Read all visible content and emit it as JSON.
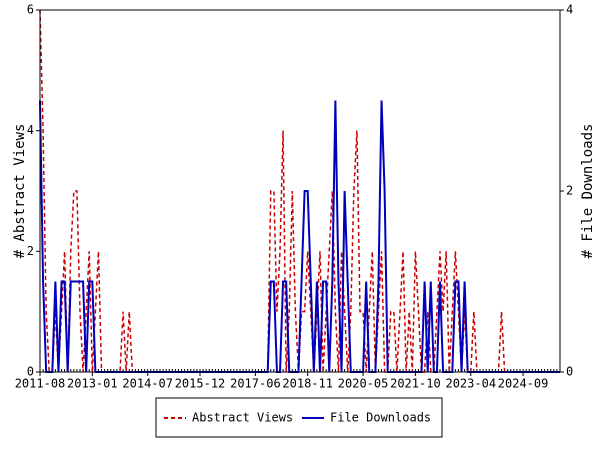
{
  "chart_data": {
    "type": "line",
    "x": [
      "2011-08",
      "2011-09",
      "2011-10",
      "2011-11",
      "2011-12",
      "2012-01",
      "2012-02",
      "2012-03",
      "2012-04",
      "2012-05",
      "2012-06",
      "2012-07",
      "2012-08",
      "2012-09",
      "2012-10",
      "2012-11",
      "2012-12",
      "2013-01",
      "2013-02",
      "2013-03",
      "2013-04",
      "2013-05",
      "2013-06",
      "2013-07",
      "2013-08",
      "2013-09",
      "2013-10",
      "2013-11",
      "2013-12",
      "2014-01",
      "2014-02",
      "2014-03",
      "2014-04",
      "2014-05",
      "2014-06",
      "2014-07",
      "2014-08",
      "2014-09",
      "2014-10",
      "2014-11",
      "2014-12",
      "2015-01",
      "2015-02",
      "2015-03",
      "2015-04",
      "2015-05",
      "2015-06",
      "2015-07",
      "2015-08",
      "2015-09",
      "2015-10",
      "2015-11",
      "2015-12",
      "2016-01",
      "2016-02",
      "2016-03",
      "2016-04",
      "2016-05",
      "2016-06",
      "2016-07",
      "2016-08",
      "2016-09",
      "2016-10",
      "2016-11",
      "2016-12",
      "2017-01",
      "2017-02",
      "2017-03",
      "2017-04",
      "2017-05",
      "2017-06",
      "2017-07",
      "2017-08",
      "2017-09",
      "2017-10",
      "2017-11",
      "2017-12",
      "2018-01",
      "2018-02",
      "2018-03",
      "2018-04",
      "2018-05",
      "2018-06",
      "2018-07",
      "2018-08",
      "2018-09",
      "2018-10",
      "2018-11",
      "2018-12",
      "2019-01",
      "2019-02",
      "2019-03",
      "2019-04",
      "2019-05",
      "2019-06",
      "2019-07",
      "2019-08",
      "2019-09",
      "2019-10",
      "2019-11",
      "2019-12",
      "2020-01",
      "2020-02",
      "2020-03",
      "2020-04",
      "2020-05",
      "2020-06",
      "2020-07",
      "2020-08",
      "2020-09",
      "2020-10",
      "2020-11",
      "2020-12",
      "2021-01",
      "2021-02",
      "2021-03",
      "2021-04",
      "2021-05",
      "2021-06",
      "2021-07",
      "2021-08",
      "2021-09",
      "2021-10",
      "2021-11",
      "2021-12",
      "2022-01",
      "2022-02",
      "2022-03",
      "2022-04",
      "2022-05",
      "2022-06",
      "2022-07",
      "2022-08",
      "2022-09",
      "2022-10",
      "2022-11",
      "2022-12",
      "2023-01",
      "2023-02",
      "2023-03",
      "2023-04",
      "2023-05",
      "2023-06",
      "2023-07",
      "2023-08",
      "2023-09",
      "2023-10",
      "2023-11",
      "2023-12",
      "2024-01",
      "2024-02",
      "2024-03",
      "2024-04",
      "2024-05",
      "2024-06",
      "2024-07",
      "2024-08",
      "2024-09",
      "2024-10",
      "2024-11",
      "2024-12",
      "2025-01",
      "2025-02",
      "2025-03",
      "2025-04",
      "2025-05",
      "2025-06",
      "2025-07",
      "2025-08",
      "2025-09"
    ],
    "series": [
      {
        "name": "Abstract Views",
        "color": "#cc0000",
        "dashed": true,
        "values": [
          6,
          4,
          1,
          0,
          0,
          1,
          0,
          1,
          2,
          0,
          2,
          3,
          3,
          1,
          0,
          1,
          2,
          0,
          1,
          2,
          0,
          0,
          0,
          0,
          0,
          0,
          0,
          1,
          0,
          1,
          0,
          0,
          0,
          0,
          0,
          0,
          0,
          0,
          0,
          0,
          0,
          0,
          0,
          0,
          0,
          0,
          0,
          0,
          0,
          0,
          0,
          0,
          0,
          0,
          0,
          0,
          0,
          0,
          0,
          0,
          0,
          0,
          0,
          0,
          0,
          0,
          0,
          0,
          0,
          0,
          0,
          0,
          0,
          0,
          0,
          3,
          3,
          1,
          2,
          4,
          0,
          1,
          3,
          1,
          0,
          1,
          1,
          2,
          1,
          0,
          1,
          2,
          0,
          1,
          2,
          3,
          1,
          0,
          2,
          1,
          0,
          1,
          3,
          4,
          1,
          1,
          0,
          1,
          2,
          0,
          1,
          2,
          0,
          0,
          1,
          1,
          0,
          1,
          2,
          0,
          1,
          0,
          2,
          1,
          0,
          0,
          1,
          0,
          0,
          1,
          2,
          1,
          2,
          0,
          1,
          2,
          1,
          0,
          1,
          0,
          0,
          1,
          0,
          0,
          0,
          0,
          0,
          0,
          0,
          0,
          1,
          0,
          0,
          0,
          0,
          0,
          0,
          0,
          0,
          0,
          0,
          0,
          0,
          0,
          0,
          0,
          0,
          0,
          0,
          0
        ]
      },
      {
        "name": "File Downloads",
        "color": "#0000bb",
        "axis": "y2",
        "values": [
          3,
          1,
          0,
          0,
          0,
          1,
          0,
          1,
          1,
          0,
          1,
          1,
          1,
          1,
          1,
          0,
          1,
          1,
          0,
          0,
          0,
          0,
          0,
          0,
          0,
          0,
          0,
          0,
          0,
          0,
          0,
          0,
          0,
          0,
          0,
          0,
          0,
          0,
          0,
          0,
          0,
          0,
          0,
          0,
          0,
          0,
          0,
          0,
          0,
          0,
          0,
          0,
          0,
          0,
          0,
          0,
          0,
          0,
          0,
          0,
          0,
          0,
          0,
          0,
          0,
          0,
          0,
          0,
          0,
          0,
          0,
          0,
          0,
          0,
          0,
          1,
          1,
          0,
          0,
          1,
          1,
          0,
          0,
          0,
          0,
          1,
          2,
          2,
          1,
          0,
          1,
          0,
          1,
          1,
          0,
          1,
          3,
          1,
          0,
          2,
          1,
          0,
          0,
          0,
          0,
          0,
          1,
          0,
          0,
          0,
          1,
          3,
          2,
          0,
          0,
          0,
          0,
          0,
          0,
          0,
          0,
          0,
          0,
          0,
          0,
          1,
          0,
          1,
          0,
          0,
          1,
          0,
          0,
          0,
          0,
          1,
          1,
          0,
          1,
          0,
          0,
          0,
          0,
          0,
          0,
          0,
          0,
          0,
          0,
          0,
          0,
          0,
          0,
          0,
          0,
          0,
          0,
          0,
          0,
          0,
          0,
          0,
          0,
          0,
          0,
          0,
          0,
          0,
          0,
          0
        ]
      }
    ],
    "xticks": [
      "2011-08",
      "2013-01",
      "2014-07",
      "2015-12",
      "2017-06",
      "2018-11",
      "2020-05",
      "2021-10",
      "2023-04",
      "2024-09"
    ],
    "ylabel": "# Abstract Views",
    "ylim": [
      0,
      6
    ],
    "yticks": [
      0,
      2,
      4,
      6
    ],
    "y2label": "# File Downloads",
    "y2lim": [
      0,
      4
    ],
    "y2ticks": [
      0,
      2,
      4
    ],
    "legend": "bottom"
  }
}
